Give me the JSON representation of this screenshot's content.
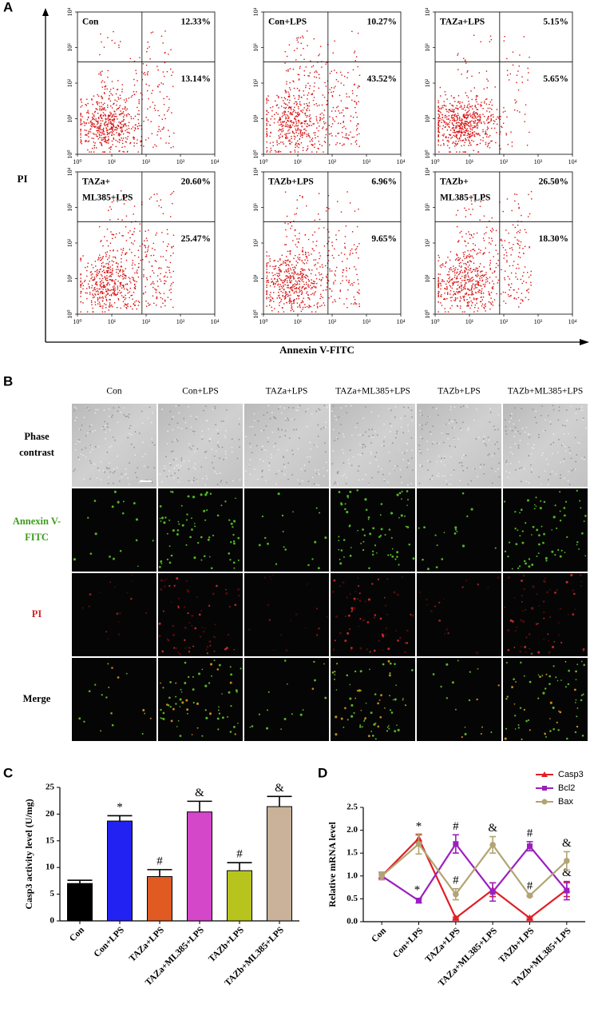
{
  "panel_a": {
    "letter": "A",
    "y_label": "PI",
    "x_label": "Annexin V-FITC",
    "xlim": [
      1,
      10000
    ],
    "ylim": [
      1,
      10000
    ],
    "ticks": [
      {
        "value": 1,
        "label": "10⁰"
      },
      {
        "value": 10,
        "label": "10¹"
      },
      {
        "value": 100,
        "label": "10²"
      },
      {
        "value": 1000,
        "label": "10³"
      },
      {
        "value": 10000,
        "label": "10⁴"
      }
    ],
    "plots": [
      {
        "label": [
          "Con"
        ],
        "upper_right": "12.33%",
        "lower_right": "13.14%"
      },
      {
        "label": [
          "Con+LPS"
        ],
        "upper_right": "10.27%",
        "lower_right": "43.52%"
      },
      {
        "label": [
          "TAZa+LPS"
        ],
        "upper_right": "5.15%",
        "lower_right": "5.65%"
      },
      {
        "label": [
          "TAZa+",
          "ML385+LPS"
        ],
        "upper_right": "20.60%",
        "lower_right": "25.47%"
      },
      {
        "label": [
          "TAZb+LPS"
        ],
        "upper_right": "6.96%",
        "lower_right": "9.65%"
      },
      {
        "label": [
          "TAZb+",
          "ML385+LPS"
        ],
        "upper_right": "26.50%",
        "lower_right": "18.30%"
      }
    ]
  },
  "panel_b": {
    "letter": "B",
    "columns": [
      "Con",
      "Con+LPS",
      "TAZa+LPS",
      "TAZa+ML385+LPS",
      "TAZb+LPS",
      "TAZb+ML385+LPS"
    ],
    "rows": [
      {
        "label": [
          "Phase",
          "contrast"
        ],
        "color": "#000000"
      },
      {
        "label": [
          "Annexin V-",
          "FITC"
        ],
        "color": "#3c9c1c"
      },
      {
        "label": [
          "PI"
        ],
        "color": "#d02424"
      },
      {
        "label": [
          "Merge"
        ],
        "color": "#000000"
      }
    ]
  },
  "chart_data": [
    {
      "panel": "C",
      "type": "bar",
      "y_label": "Casp3 activity level (U/mg)",
      "categories": [
        "Con",
        "Con+LPS",
        "TAZa+LPS",
        "TAZa+ML385+LPS",
        "TAZb+LPS",
        "TAZb+ML385+LPS"
      ],
      "values": [
        7.0,
        18.7,
        8.3,
        20.4,
        9.4,
        21.4
      ],
      "errors": [
        0.6,
        1.0,
        1.3,
        2.0,
        1.5,
        1.9
      ],
      "colors": [
        "#000000",
        "#2222f2",
        "#e05a22",
        "#d447c8",
        "#b8c41e",
        "#c9b299"
      ],
      "annotations": [
        null,
        "*",
        "#",
        "&",
        "#",
        "&"
      ],
      "ylim": [
        0,
        25
      ],
      "yticks": [
        0,
        5,
        10,
        15,
        20,
        25
      ]
    },
    {
      "panel": "D",
      "type": "line",
      "y_label": "Relative  mRNA level",
      "legend": "top-right",
      "categories": [
        "Con",
        "Con+LPS",
        "TAZa+LPS",
        "TAZa+ML385+LPS",
        "TAZb+LPS",
        "TAZb+ML385+LPS"
      ],
      "series": [
        {
          "name": "Casp3",
          "color": "#e01f26",
          "marker": "triangle",
          "values": [
            1.0,
            1.82,
            0.08,
            0.7,
            0.08,
            0.7
          ],
          "errors": [
            0.08,
            0.08,
            0.02,
            0.15,
            0.02,
            0.15
          ],
          "annotations": [
            null,
            "*",
            null,
            null,
            null,
            null
          ]
        },
        {
          "name": "Bcl2",
          "color": "#9b1fbf",
          "marker": "square",
          "values": [
            1.0,
            0.46,
            1.7,
            0.65,
            1.65,
            0.68
          ],
          "errors": [
            0.08,
            0.05,
            0.2,
            0.2,
            0.1,
            0.2
          ],
          "annotations": [
            null,
            "*",
            "#",
            null,
            "#",
            "&"
          ]
        },
        {
          "name": "Bax",
          "color": "#b2a473",
          "marker": "circle",
          "values": [
            1.0,
            1.7,
            0.6,
            1.68,
            0.57,
            1.33
          ],
          "errors": [
            0.08,
            0.22,
            0.12,
            0.18,
            0.02,
            0.2
          ],
          "annotations": [
            null,
            null,
            "#",
            "&",
            "#",
            "&"
          ]
        }
      ],
      "ylim": [
        0,
        2.5
      ],
      "yticks": [
        {
          "value": 0,
          "label": "0.0"
        },
        {
          "value": 0.5,
          "label": "0.5"
        },
        {
          "value": 1,
          "label": "1.0"
        },
        {
          "value": 1.5,
          "label": "1.5"
        },
        {
          "value": 2,
          "label": "2.0"
        },
        {
          "value": 2.5,
          "label": "2.5"
        }
      ]
    }
  ]
}
